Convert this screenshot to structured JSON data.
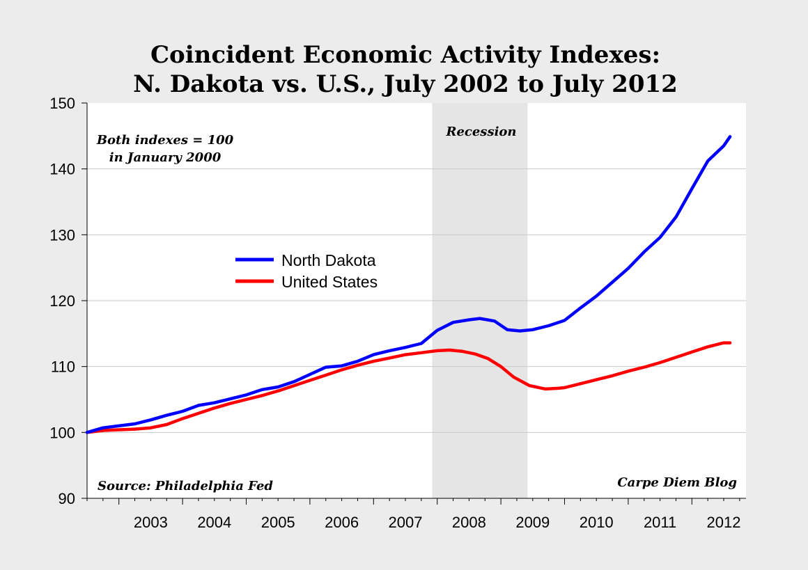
{
  "chart_data": {
    "type": "line",
    "title": [
      "Coincident Economic Activity Indexes:",
      "N. Dakota vs. U.S., July 2002 to July 2012"
    ],
    "ylim": [
      90,
      150
    ],
    "yticks": [
      "90",
      "100",
      "110",
      "120",
      "130",
      "140",
      "150"
    ],
    "xticks": [
      "2003",
      "2004",
      "2005",
      "2006",
      "2007",
      "2008",
      "2009",
      "2010",
      "2011",
      "2012"
    ],
    "grid": true,
    "legend_position": "upper-left",
    "shaded_region": {
      "label": "Recession",
      "start": 2007.92,
      "end": 2009.42
    },
    "annotations": {
      "note_line1": "Both indexes = 100",
      "note_line2": "in January 2000",
      "source": "Source: Philadelphia Fed",
      "credit": "Carpe Diem Blog"
    },
    "series": [
      {
        "name": "North Dakota",
        "color": "#0000ff",
        "points": [
          [
            2002.5,
            100.0
          ],
          [
            2002.75,
            100.7
          ],
          [
            2003.0,
            101.0
          ],
          [
            2003.25,
            101.3
          ],
          [
            2003.5,
            101.9
          ],
          [
            2003.75,
            102.6
          ],
          [
            2004.0,
            103.2
          ],
          [
            2004.25,
            104.1
          ],
          [
            2004.5,
            104.5
          ],
          [
            2004.75,
            105.1
          ],
          [
            2005.0,
            105.7
          ],
          [
            2005.25,
            106.5
          ],
          [
            2005.5,
            106.9
          ],
          [
            2005.75,
            107.7
          ],
          [
            2006.0,
            108.8
          ],
          [
            2006.25,
            109.9
          ],
          [
            2006.5,
            110.1
          ],
          [
            2006.75,
            110.8
          ],
          [
            2007.0,
            111.8
          ],
          [
            2007.25,
            112.4
          ],
          [
            2007.5,
            112.9
          ],
          [
            2007.75,
            113.5
          ],
          [
            2008.0,
            115.5
          ],
          [
            2008.25,
            116.7
          ],
          [
            2008.5,
            117.1
          ],
          [
            2008.67,
            117.3
          ],
          [
            2008.9,
            116.9
          ],
          [
            2009.1,
            115.6
          ],
          [
            2009.3,
            115.4
          ],
          [
            2009.5,
            115.6
          ],
          [
            2009.75,
            116.2
          ],
          [
            2010.0,
            117.0
          ],
          [
            2010.25,
            118.9
          ],
          [
            2010.5,
            120.7
          ],
          [
            2010.75,
            122.8
          ],
          [
            2011.0,
            124.9
          ],
          [
            2011.25,
            127.4
          ],
          [
            2011.5,
            129.6
          ],
          [
            2011.75,
            132.7
          ],
          [
            2012.0,
            137.0
          ],
          [
            2012.25,
            141.2
          ],
          [
            2012.5,
            143.5
          ],
          [
            2012.6,
            144.9
          ]
        ]
      },
      {
        "name": "United States",
        "color": "#ff0000",
        "points": [
          [
            2002.5,
            100.0
          ],
          [
            2002.75,
            100.3
          ],
          [
            2003.0,
            100.4
          ],
          [
            2003.25,
            100.5
          ],
          [
            2003.5,
            100.7
          ],
          [
            2003.75,
            101.2
          ],
          [
            2004.0,
            102.1
          ],
          [
            2004.25,
            102.9
          ],
          [
            2004.5,
            103.7
          ],
          [
            2004.75,
            104.4
          ],
          [
            2005.0,
            105.0
          ],
          [
            2005.25,
            105.6
          ],
          [
            2005.5,
            106.3
          ],
          [
            2005.75,
            107.1
          ],
          [
            2006.0,
            107.9
          ],
          [
            2006.25,
            108.7
          ],
          [
            2006.5,
            109.5
          ],
          [
            2006.75,
            110.2
          ],
          [
            2007.0,
            110.8
          ],
          [
            2007.25,
            111.3
          ],
          [
            2007.5,
            111.8
          ],
          [
            2007.75,
            112.1
          ],
          [
            2008.0,
            112.4
          ],
          [
            2008.2,
            112.5
          ],
          [
            2008.4,
            112.3
          ],
          [
            2008.6,
            111.9
          ],
          [
            2008.8,
            111.2
          ],
          [
            2009.0,
            110.0
          ],
          [
            2009.2,
            108.4
          ],
          [
            2009.45,
            107.1
          ],
          [
            2009.7,
            106.6
          ],
          [
            2009.9,
            106.7
          ],
          [
            2010.0,
            106.8
          ],
          [
            2010.25,
            107.4
          ],
          [
            2010.5,
            108.0
          ],
          [
            2010.75,
            108.6
          ],
          [
            2011.0,
            109.3
          ],
          [
            2011.25,
            109.9
          ],
          [
            2011.5,
            110.6
          ],
          [
            2011.75,
            111.4
          ],
          [
            2012.0,
            112.2
          ],
          [
            2012.25,
            113.0
          ],
          [
            2012.5,
            113.6
          ],
          [
            2012.6,
            113.6
          ]
        ]
      }
    ]
  }
}
